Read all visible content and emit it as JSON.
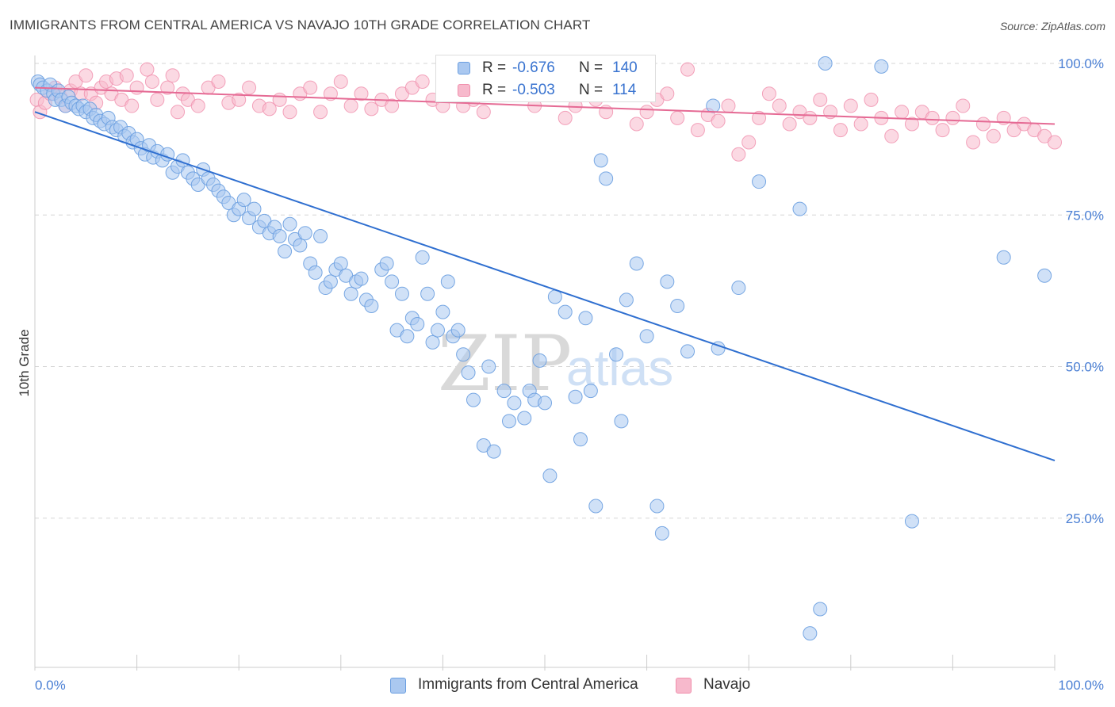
{
  "title": "IMMIGRANTS FROM CENTRAL AMERICA VS NAVAJO 10TH GRADE CORRELATION CHART",
  "source": "Source: ZipAtlas.com",
  "watermark": {
    "zip": "ZIP",
    "atlas": "atlas"
  },
  "legend": {
    "rows": [
      {
        "r_label": "R =",
        "r_value": "-0.676",
        "n_label": "N =",
        "n_value": "140"
      },
      {
        "r_label": "R =",
        "r_value": "-0.503",
        "n_label": "N =",
        "n_value": "114"
      }
    ]
  },
  "bottom_legend": {
    "series1": "Immigrants from Central America",
    "series2": "Navajo"
  },
  "colors": {
    "blue_fill": "#aac8f0",
    "blue_stroke": "#6a9ee0",
    "blue_line": "#2f6fd0",
    "pink_fill": "#f7b9cc",
    "pink_stroke": "#f08fac",
    "pink_line": "#e56a94",
    "grid": "#d5d5d5",
    "tick_text": "#4a7fd4"
  },
  "chart_data": {
    "type": "scatter",
    "title": "IMMIGRANTS FROM CENTRAL AMERICA VS NAVAJO 10TH GRADE CORRELATION CHART",
    "xlabel": "",
    "ylabel": "10th Grade",
    "xlim": [
      0,
      100
    ],
    "ylim": [
      0,
      103
    ],
    "x_tick_labels": [
      "0.0%",
      "100.0%"
    ],
    "y_tick_labels": [
      "25.0%",
      "50.0%",
      "75.0%",
      "100.0%"
    ],
    "y_ticks": [
      25,
      50,
      75,
      100
    ],
    "grid": true,
    "series": [
      {
        "name": "Immigrants from Central America",
        "color": "#aac8f0",
        "trendline": {
          "x": [
            0,
            100
          ],
          "y": [
            92,
            34.5
          ]
        },
        "points": [
          [
            0.3,
            97
          ],
          [
            0.5,
            96.5
          ],
          [
            0.8,
            96
          ],
          [
            1.2,
            95.5
          ],
          [
            1.5,
            96.5
          ],
          [
            1.8,
            95
          ],
          [
            2,
            94
          ],
          [
            2.3,
            95.5
          ],
          [
            2.6,
            94
          ],
          [
            3,
            93
          ],
          [
            3.3,
            94.5
          ],
          [
            3.6,
            93.5
          ],
          [
            4,
            93
          ],
          [
            4.3,
            92.5
          ],
          [
            4.7,
            93
          ],
          [
            5,
            92
          ],
          [
            5.4,
            92.5
          ],
          [
            5.7,
            91
          ],
          [
            6,
            91.5
          ],
          [
            6.4,
            90.5
          ],
          [
            6.8,
            90
          ],
          [
            7.2,
            91
          ],
          [
            7.6,
            89.5
          ],
          [
            8,
            89
          ],
          [
            8.4,
            89.5
          ],
          [
            8.8,
            88
          ],
          [
            9.2,
            88.5
          ],
          [
            9.6,
            87
          ],
          [
            10,
            87.5
          ],
          [
            10.4,
            86
          ],
          [
            10.8,
            85
          ],
          [
            11.2,
            86.5
          ],
          [
            11.6,
            84.5
          ],
          [
            12,
            85.5
          ],
          [
            12.5,
            84
          ],
          [
            13,
            85
          ],
          [
            13.5,
            82
          ],
          [
            14,
            83
          ],
          [
            14.5,
            84
          ],
          [
            15,
            82
          ],
          [
            15.5,
            81
          ],
          [
            16,
            80
          ],
          [
            16.5,
            82.5
          ],
          [
            17,
            81
          ],
          [
            17.5,
            80
          ],
          [
            18,
            79
          ],
          [
            18.5,
            78
          ],
          [
            19,
            77
          ],
          [
            19.5,
            75
          ],
          [
            20,
            76
          ],
          [
            20.5,
            77.5
          ],
          [
            21,
            74.5
          ],
          [
            21.5,
            76
          ],
          [
            22,
            73
          ],
          [
            22.5,
            74
          ],
          [
            23,
            72
          ],
          [
            23.5,
            73
          ],
          [
            24,
            71.5
          ],
          [
            24.5,
            69
          ],
          [
            25,
            73.5
          ],
          [
            25.5,
            71
          ],
          [
            26,
            70
          ],
          [
            26.5,
            72
          ],
          [
            27,
            67
          ],
          [
            27.5,
            65.5
          ],
          [
            28,
            71.5
          ],
          [
            28.5,
            63
          ],
          [
            29,
            64
          ],
          [
            29.5,
            66
          ],
          [
            30,
            67
          ],
          [
            30.5,
            65
          ],
          [
            31,
            62
          ],
          [
            31.5,
            64
          ],
          [
            32,
            64.5
          ],
          [
            32.5,
            61
          ],
          [
            33,
            60
          ],
          [
            34,
            66
          ],
          [
            34.5,
            67
          ],
          [
            35,
            64
          ],
          [
            35.5,
            56
          ],
          [
            36,
            62
          ],
          [
            36.5,
            55
          ],
          [
            37,
            58
          ],
          [
            37.5,
            57
          ],
          [
            38,
            68
          ],
          [
            38.5,
            62
          ],
          [
            39,
            54
          ],
          [
            39.5,
            56
          ],
          [
            40,
            59
          ],
          [
            40.5,
            64
          ],
          [
            41,
            55
          ],
          [
            41.5,
            56
          ],
          [
            42,
            52
          ],
          [
            42.5,
            49
          ],
          [
            43,
            44.5
          ],
          [
            44,
            37
          ],
          [
            44.5,
            50
          ],
          [
            45,
            36
          ],
          [
            46,
            46
          ],
          [
            46.5,
            41
          ],
          [
            47,
            44
          ],
          [
            48,
            41.5
          ],
          [
            48.5,
            46
          ],
          [
            49,
            44.5
          ],
          [
            49.5,
            51
          ],
          [
            50,
            44
          ],
          [
            50.5,
            32
          ],
          [
            51,
            61.5
          ],
          [
            52,
            59
          ],
          [
            53,
            45
          ],
          [
            53.5,
            38
          ],
          [
            54,
            58
          ],
          [
            54.5,
            46
          ],
          [
            55,
            27
          ],
          [
            55.5,
            84
          ],
          [
            56,
            81
          ],
          [
            57,
            52
          ],
          [
            57.5,
            41
          ],
          [
            58,
            61
          ],
          [
            59,
            67
          ],
          [
            60,
            55
          ],
          [
            61,
            27
          ],
          [
            61.5,
            22.5
          ],
          [
            62,
            64
          ],
          [
            63,
            60
          ],
          [
            64,
            52.5
          ],
          [
            66.5,
            93
          ],
          [
            67,
            53
          ],
          [
            69,
            63
          ],
          [
            71,
            80.5
          ],
          [
            75,
            76
          ],
          [
            76,
            6
          ],
          [
            77,
            10
          ],
          [
            77.5,
            100
          ],
          [
            83,
            99.5
          ],
          [
            86,
            24.5
          ],
          [
            95,
            68
          ],
          [
            99,
            65
          ]
        ]
      },
      {
        "name": "Navajo",
        "color": "#f7b9cc",
        "trendline": {
          "x": [
            0,
            100
          ],
          "y": [
            96,
            90
          ]
        },
        "points": [
          [
            0.2,
            94
          ],
          [
            0.5,
            92
          ],
          [
            1,
            93.5
          ],
          [
            1.5,
            95
          ],
          [
            2,
            96
          ],
          [
            2.5,
            94.5
          ],
          [
            3,
            93
          ],
          [
            3.5,
            95.5
          ],
          [
            4,
            97
          ],
          [
            4.5,
            95
          ],
          [
            5,
            98
          ],
          [
            5.5,
            95
          ],
          [
            6,
            93.5
          ],
          [
            6.5,
            96
          ],
          [
            7,
            97
          ],
          [
            7.5,
            95
          ],
          [
            8,
            97.5
          ],
          [
            8.5,
            94
          ],
          [
            9,
            98
          ],
          [
            9.5,
            93
          ],
          [
            10,
            96
          ],
          [
            11,
            99
          ],
          [
            11.5,
            97
          ],
          [
            12,
            94
          ],
          [
            13,
            96
          ],
          [
            13.5,
            98
          ],
          [
            14,
            92
          ],
          [
            14.5,
            95
          ],
          [
            15,
            94
          ],
          [
            16,
            93
          ],
          [
            17,
            96
          ],
          [
            18,
            97
          ],
          [
            19,
            93.5
          ],
          [
            20,
            94
          ],
          [
            21,
            96
          ],
          [
            22,
            93
          ],
          [
            23,
            92.5
          ],
          [
            24,
            94
          ],
          [
            25,
            92
          ],
          [
            26,
            95
          ],
          [
            27,
            96
          ],
          [
            28,
            92
          ],
          [
            29,
            95
          ],
          [
            30,
            97
          ],
          [
            31,
            93
          ],
          [
            32,
            95
          ],
          [
            33,
            92.5
          ],
          [
            34,
            94
          ],
          [
            35,
            93
          ],
          [
            36,
            95
          ],
          [
            37,
            96
          ],
          [
            38,
            97
          ],
          [
            39,
            94
          ],
          [
            40,
            93
          ],
          [
            41,
            99
          ],
          [
            42,
            93
          ],
          [
            43,
            94
          ],
          [
            44,
            92
          ],
          [
            45,
            98
          ],
          [
            46,
            96
          ],
          [
            47,
            99
          ],
          [
            48,
            95
          ],
          [
            49,
            93
          ],
          [
            50,
            99
          ],
          [
            51,
            96.5
          ],
          [
            52,
            91
          ],
          [
            53,
            93
          ],
          [
            54,
            96
          ],
          [
            55,
            94
          ],
          [
            56,
            92
          ],
          [
            57,
            95
          ],
          [
            58,
            99
          ],
          [
            59,
            90
          ],
          [
            60,
            92
          ],
          [
            61,
            94
          ],
          [
            62,
            95
          ],
          [
            63,
            91
          ],
          [
            64,
            99
          ],
          [
            65,
            89
          ],
          [
            66,
            91.5
          ],
          [
            67,
            90.5
          ],
          [
            68,
            93
          ],
          [
            69,
            85
          ],
          [
            70,
            87
          ],
          [
            71,
            91
          ],
          [
            72,
            95
          ],
          [
            73,
            93
          ],
          [
            74,
            90
          ],
          [
            75,
            92
          ],
          [
            76,
            91
          ],
          [
            77,
            94
          ],
          [
            78,
            92
          ],
          [
            79,
            89
          ],
          [
            80,
            93
          ],
          [
            81,
            90
          ],
          [
            82,
            94
          ],
          [
            83,
            91
          ],
          [
            84,
            88
          ],
          [
            85,
            92
          ],
          [
            86,
            90
          ],
          [
            87,
            92
          ],
          [
            88,
            91
          ],
          [
            89,
            89
          ],
          [
            90,
            91
          ],
          [
            91,
            93
          ],
          [
            92,
            87
          ],
          [
            93,
            90
          ],
          [
            94,
            88
          ],
          [
            95,
            91
          ],
          [
            96,
            89
          ],
          [
            97,
            90
          ],
          [
            98,
            89
          ],
          [
            99,
            88
          ],
          [
            100,
            87
          ]
        ]
      }
    ]
  }
}
